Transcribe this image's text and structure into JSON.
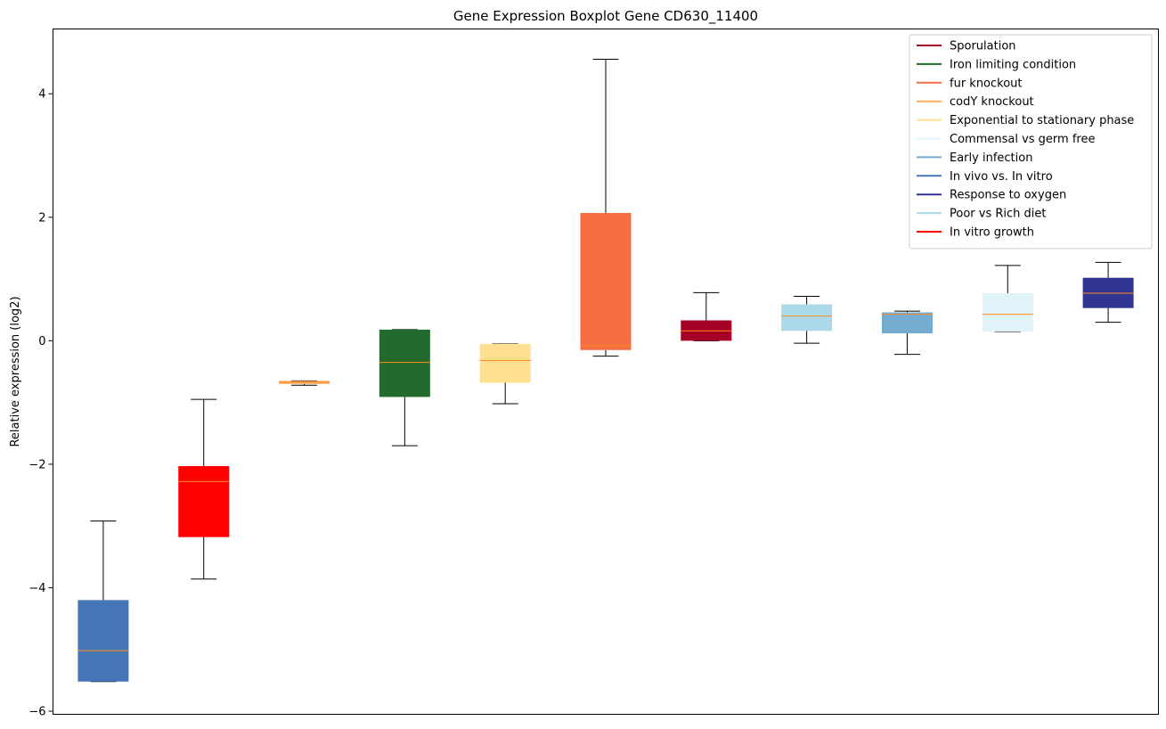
{
  "chart_data": {
    "type": "boxplot",
    "title": "Gene Expression Boxplot Gene CD630_11400",
    "xlabel": "",
    "ylabel": "Relative expression (log2)",
    "ylim": [
      -6.05,
      5.05
    ],
    "yticks": [
      -6,
      -4,
      -2,
      0,
      2,
      4
    ],
    "ytick_labels": [
      "−6",
      "−4",
      "−2",
      "0",
      "2",
      "4"
    ],
    "grid": false,
    "legend_position": "top-right",
    "median_color": "#ff8c1a",
    "legend": [
      {
        "label": "Sporulation",
        "color": "#a50026"
      },
      {
        "label": "Iron limiting condition",
        "color": "#226b2c"
      },
      {
        "label": "fur knockout",
        "color": "#f46d43"
      },
      {
        "label": "codY knockout",
        "color": "#fdae61"
      },
      {
        "label": "Exponential to stationary phase",
        "color": "#fee090"
      },
      {
        "label": "Commensal vs germ free",
        "color": "#e0f3f8"
      },
      {
        "label": "Early infection",
        "color": "#74add1"
      },
      {
        "label": "In vivo vs. In vitro",
        "color": "#4575b4"
      },
      {
        "label": "Response to oxygen",
        "color": "#313695"
      },
      {
        "label": "Poor vs Rich diet",
        "color": "#abd9e9"
      },
      {
        "label": "In vitro growth",
        "color": "#ff0000"
      }
    ],
    "boxes": [
      {
        "condition": "In vivo vs. In vitro",
        "color": "#4575b4",
        "whisker_low": -5.52,
        "q1": -5.52,
        "median": -5.02,
        "q3": -4.2,
        "whisker_high": -2.92
      },
      {
        "condition": "In vitro growth",
        "color": "#ff0000",
        "whisker_low": -3.86,
        "q1": -3.18,
        "median": -2.28,
        "q3": -2.03,
        "whisker_high": -0.95
      },
      {
        "condition": "codY knockout",
        "color": "#fdae61",
        "whisker_low": -0.72,
        "q1": -0.7,
        "median": -0.67,
        "q3": -0.65,
        "whisker_high": -0.65
      },
      {
        "condition": "Iron limiting condition",
        "color": "#226b2c",
        "whisker_low": -1.7,
        "q1": -0.91,
        "median": -0.35,
        "q3": 0.18,
        "whisker_high": 0.18
      },
      {
        "condition": "Exponential to stationary phase",
        "color": "#fee090",
        "whisker_low": -1.02,
        "q1": -0.68,
        "median": -0.32,
        "q3": -0.05,
        "whisker_high": -0.05
      },
      {
        "condition": "fur knockout",
        "color": "#f46d43",
        "whisker_low": -0.25,
        "q1": -0.15,
        "median": -0.08,
        "q3": 2.07,
        "whisker_high": 4.56
      },
      {
        "condition": "Sporulation",
        "color": "#a50026",
        "whisker_low": 0.0,
        "q1": 0.0,
        "median": 0.16,
        "q3": 0.33,
        "whisker_high": 0.78
      },
      {
        "condition": "Poor vs Rich diet",
        "color": "#abd9e9",
        "whisker_low": -0.04,
        "q1": 0.16,
        "median": 0.4,
        "q3": 0.59,
        "whisker_high": 0.72
      },
      {
        "condition": "Early infection",
        "color": "#74add1",
        "whisker_low": -0.22,
        "q1": 0.12,
        "median": 0.43,
        "q3": 0.46,
        "whisker_high": 0.48
      },
      {
        "condition": "Commensal vs germ free",
        "color": "#e0f3f8",
        "whisker_low": 0.15,
        "q1": 0.15,
        "median": 0.43,
        "q3": 0.77,
        "whisker_high": 1.22
      },
      {
        "condition": "Response to oxygen",
        "color": "#313695",
        "whisker_low": 0.3,
        "q1": 0.53,
        "median": 0.77,
        "q3": 1.02,
        "whisker_high": 1.27
      }
    ]
  }
}
